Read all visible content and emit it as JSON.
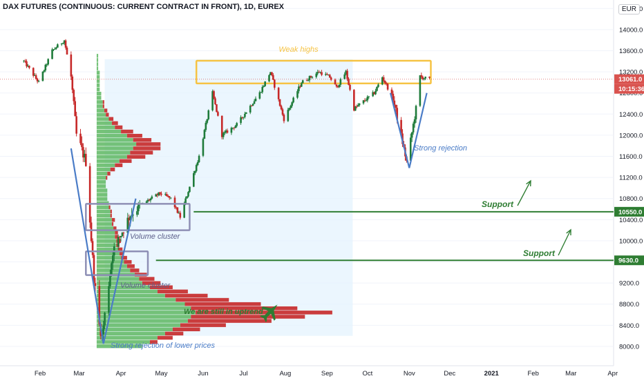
{
  "header": {
    "title": "DAX FUTURES (CONTINUOUS: CURRENT CONTRACT IN FRONT), 1D, EUREX",
    "currency_button": "EUR"
  },
  "colors": {
    "up": "#26a69a",
    "down": "#ef5350",
    "candle_up": "#1e7b3a",
    "candle_down": "#c62828",
    "support": "#2e7d32",
    "weak_highs": "#f6c343",
    "cluster_box": "#8e8fb5",
    "rejection_line": "#4a7cc7",
    "range_bg": "#e3f2fd",
    "volume_up": "#66bb6a",
    "volume_down": "#c62828",
    "last_price": "#d9534f"
  },
  "chart_data": {
    "type": "candlestick",
    "y_axis": {
      "ticks": [
        "14400.0",
        "14000.0",
        "13600.0",
        "13200.0",
        "12800.0",
        "12400.0",
        "12000.0",
        "11600.0",
        "11200.0",
        "10800.0",
        "10400.0",
        "10000.0",
        "9600.0",
        "9200.0",
        "8800.0",
        "8400.0",
        "8000.0"
      ],
      "range": [
        7960,
        14430
      ]
    },
    "x_axis": {
      "ticks": [
        "Feb",
        "Mar",
        "Apr",
        "May",
        "Jun",
        "Jul",
        "Aug",
        "Sep",
        "Oct",
        "Nov",
        "Dec",
        "2021",
        "Feb",
        "Mar",
        "Apr"
      ],
      "bold_ticks": [
        "2021"
      ]
    },
    "price_labels": {
      "last_price": "13061.0",
      "countdown": "10:15:36",
      "support_high": "10550.0",
      "support_low": "9630.0"
    },
    "annotations": {
      "weak_highs": "Weak highs",
      "strong_rejection": "Strong rejection",
      "support_upper": "Support",
      "support_lower": "Support",
      "volume_cluster_upper": "Volume cluster",
      "volume_cluster_lower": "Volume cluster",
      "uptrend": "We are still in uptrend",
      "rejection_lower": "Strong rejection of lower prices"
    },
    "levels": {
      "support_high": 10550,
      "support_low": 9630
    },
    "anchors": [
      [
        "2020-01-20",
        13400
      ],
      [
        "2020-01-31",
        13000
      ],
      [
        "2020-02-10",
        13600
      ],
      [
        "2020-02-19",
        13800
      ],
      [
        "2020-02-24",
        13100
      ],
      [
        "2020-02-28",
        12000
      ],
      [
        "2020-03-06",
        11500
      ],
      [
        "2020-03-12",
        9300
      ],
      [
        "2020-03-16",
        8400
      ],
      [
        "2020-03-18",
        8200
      ],
      [
        "2020-03-26",
        9800
      ],
      [
        "2020-04-08",
        10500
      ],
      [
        "2020-04-17",
        10700
      ],
      [
        "2020-04-30",
        10900
      ],
      [
        "2020-05-08",
        10800
      ],
      [
        "2020-05-15",
        10450
      ],
      [
        "2020-05-29",
        11600
      ],
      [
        "2020-06-08",
        12800
      ],
      [
        "2020-06-15",
        12000
      ],
      [
        "2020-06-26",
        12200
      ],
      [
        "2020-07-13",
        12800
      ],
      [
        "2020-07-21",
        13200
      ],
      [
        "2020-07-31",
        12300
      ],
      [
        "2020-08-13",
        13000
      ],
      [
        "2020-08-26",
        13200
      ],
      [
        "2020-09-03",
        13100
      ],
      [
        "2020-09-08",
        12900
      ],
      [
        "2020-09-15",
        13200
      ],
      [
        "2020-09-21",
        12500
      ],
      [
        "2020-10-06",
        12800
      ],
      [
        "2020-10-12",
        13100
      ],
      [
        "2020-10-20",
        12700
      ],
      [
        "2020-10-30",
        11500
      ],
      [
        "2020-11-02",
        11900
      ],
      [
        "2020-11-06",
        12500
      ],
      [
        "2020-11-09",
        13100
      ],
      [
        "2020-11-16",
        13061
      ]
    ],
    "volume_profile": {
      "price_range": [
        7960,
        13540
      ],
      "bins": [
        [
          0.3,
          0.0
        ],
        [
          0.35,
          0.05
        ],
        [
          0.4,
          0.1
        ],
        [
          0.45,
          0.12
        ],
        [
          0.5,
          0.18
        ],
        [
          0.55,
          0.3
        ],
        [
          0.6,
          0.55
        ],
        [
          0.62,
          0.75
        ],
        [
          0.65,
          0.9
        ],
        [
          0.62,
          0.7
        ],
        [
          0.58,
          0.5
        ],
        [
          0.52,
          0.35
        ],
        [
          0.45,
          0.28
        ],
        [
          0.4,
          0.2
        ],
        [
          0.35,
          0.15
        ],
        [
          0.3,
          0.12
        ],
        [
          0.28,
          0.1
        ],
        [
          0.25,
          0.08
        ],
        [
          0.22,
          0.06
        ],
        [
          0.2,
          0.05
        ],
        [
          0.18,
          0.05
        ],
        [
          0.16,
          0.04
        ],
        [
          0.15,
          0.03
        ],
        [
          0.14,
          0.03
        ],
        [
          0.13,
          0.02
        ],
        [
          0.13,
          0.03
        ],
        [
          0.12,
          0.02
        ],
        [
          0.12,
          0.02
        ],
        [
          0.11,
          0.02
        ],
        [
          0.1,
          0.01
        ],
        [
          0.1,
          0.02
        ],
        [
          0.09,
          0.01
        ],
        [
          0.09,
          0.01
        ],
        [
          0.08,
          0.01
        ],
        [
          0.08,
          0.0
        ],
        [
          0.07,
          0.0
        ],
        [
          0.07,
          0.0
        ],
        [
          0.07,
          0.0
        ],
        [
          0.06,
          0.0
        ],
        [
          0.06,
          0.0
        ],
        [
          0.06,
          0.01
        ],
        [
          0.07,
          0.02
        ],
        [
          0.09,
          0.03
        ],
        [
          0.12,
          0.05
        ],
        [
          0.15,
          0.08
        ],
        [
          0.2,
          0.12
        ],
        [
          0.22,
          0.15
        ],
        [
          0.24,
          0.18
        ],
        [
          0.26,
          0.16
        ],
        [
          0.24,
          0.12
        ],
        [
          0.2,
          0.1
        ],
        [
          0.16,
          0.08
        ],
        [
          0.12,
          0.05
        ],
        [
          0.1,
          0.04
        ],
        [
          0.08,
          0.03
        ],
        [
          0.06,
          0.02
        ],
        [
          0.05,
          0.02
        ],
        [
          0.04,
          0.01
        ],
        [
          0.04,
          0.01
        ],
        [
          0.03,
          0.0
        ],
        [
          0.03,
          0.0
        ],
        [
          0.02,
          0.0
        ],
        [
          0.02,
          0.0
        ],
        [
          0.02,
          0.0
        ],
        [
          0.02,
          0.0
        ],
        [
          0.02,
          0.0
        ],
        [
          0.01,
          0.0
        ],
        [
          0.01,
          0.0
        ],
        [
          0.01,
          0.0
        ],
        [
          0.01,
          0.0
        ]
      ]
    }
  }
}
